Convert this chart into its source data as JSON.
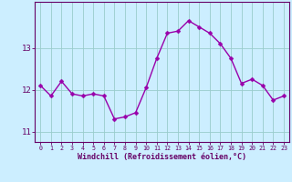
{
  "x": [
    0,
    1,
    2,
    3,
    4,
    5,
    6,
    7,
    8,
    9,
    10,
    11,
    12,
    13,
    14,
    15,
    16,
    17,
    18,
    19,
    20,
    21,
    22,
    23
  ],
  "y": [
    12.1,
    11.85,
    12.2,
    11.9,
    11.85,
    11.9,
    11.85,
    11.3,
    11.35,
    11.45,
    12.05,
    12.75,
    13.35,
    13.4,
    13.65,
    13.5,
    13.35,
    13.1,
    12.75,
    12.15,
    12.25,
    12.1,
    11.75,
    11.85
  ],
  "title": "",
  "xlabel": "Windchill (Refroidissement éolien,°C)",
  "ylabel": "",
  "xlim": [
    -0.5,
    23.5
  ],
  "ylim": [
    10.75,
    14.1
  ],
  "yticks": [
    11,
    12,
    13
  ],
  "xticks": [
    0,
    1,
    2,
    3,
    4,
    5,
    6,
    7,
    8,
    9,
    10,
    11,
    12,
    13,
    14,
    15,
    16,
    17,
    18,
    19,
    20,
    21,
    22,
    23
  ],
  "line_color": "#9900aa",
  "marker_color": "#9900aa",
  "bg_color": "#cceeff",
  "grid_color": "#99cccc",
  "axis_color": "#660066",
  "tick_label_color": "#660066",
  "xlabel_color": "#660066",
  "marker": "D",
  "markersize": 2.5,
  "linewidth": 1.0
}
